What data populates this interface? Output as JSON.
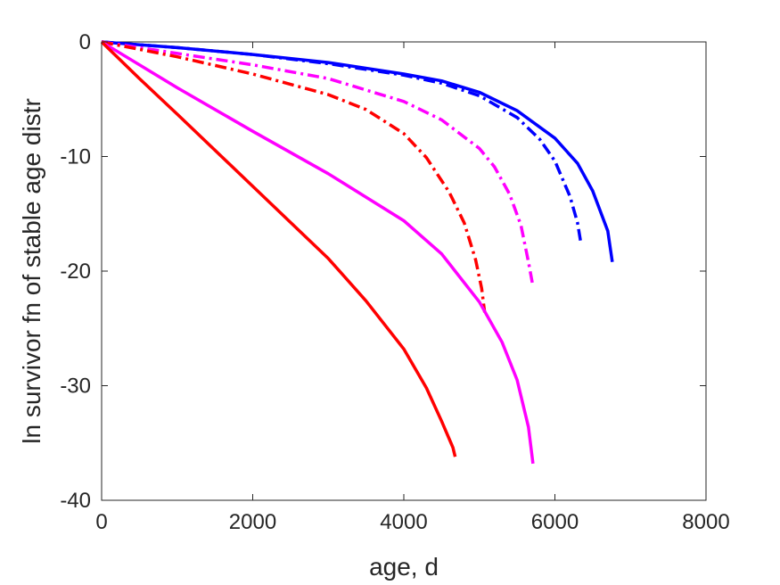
{
  "chart_data": {
    "type": "line",
    "title": "",
    "xlabel": "age, d",
    "ylabel": "ln survivor fn of stable age distr",
    "xlim": [
      0,
      8000
    ],
    "ylim": [
      -40,
      0
    ],
    "xticks": [
      0,
      2000,
      4000,
      6000,
      8000
    ],
    "yticks": [
      0,
      -10,
      -20,
      -30,
      -40
    ],
    "xtick_labels": [
      "0",
      "2000",
      "4000",
      "6000",
      "8000"
    ],
    "ytick_labels": [
      "0",
      "-10",
      "-20",
      "-30",
      "-40"
    ],
    "grid": false,
    "legend": false,
    "series": [
      {
        "color": "#0000ff",
        "style": "solid",
        "x": [
          0,
          1000,
          2000,
          3000,
          4000,
          4500,
          5000,
          5500,
          6000,
          6300,
          6500,
          6700,
          6760
        ],
        "y": [
          0,
          -0.5,
          -1.1,
          -1.8,
          -2.8,
          -3.4,
          -4.4,
          -6.0,
          -8.4,
          -10.6,
          -13.0,
          -16.5,
          -19.2
        ]
      },
      {
        "color": "#0000ff",
        "style": "dashdot",
        "x": [
          0,
          1000,
          2000,
          3000,
          4000,
          4500,
          5000,
          5500,
          5800,
          6000,
          6200,
          6300,
          6340
        ],
        "y": [
          0,
          -0.5,
          -1.1,
          -1.9,
          -2.9,
          -3.6,
          -4.7,
          -6.6,
          -8.5,
          -10.4,
          -13.5,
          -15.8,
          -17.4
        ]
      },
      {
        "color": "#ff00ff",
        "style": "dashdot",
        "x": [
          0,
          1000,
          2000,
          3000,
          4000,
          4500,
          5000,
          5200,
          5400,
          5550,
          5650,
          5700
        ],
        "y": [
          0,
          -1.0,
          -2.0,
          -3.2,
          -5.2,
          -6.8,
          -9.3,
          -10.9,
          -13.3,
          -16.0,
          -19.2,
          -21.0
        ]
      },
      {
        "color": "#ff0000",
        "style": "dashdot",
        "x": [
          0,
          1000,
          2000,
          3000,
          3500,
          4000,
          4300,
          4600,
          4800,
          4950,
          5030,
          5070
        ],
        "y": [
          0,
          -1.3,
          -2.8,
          -4.6,
          -5.9,
          -8.0,
          -10.1,
          -13.1,
          -15.8,
          -19.0,
          -21.5,
          -23.6
        ]
      },
      {
        "color": "#ff00ff",
        "style": "solid",
        "x": [
          0,
          1000,
          2000,
          3000,
          4000,
          4500,
          5000,
          5300,
          5500,
          5650,
          5710
        ],
        "y": [
          0,
          -4.0,
          -7.8,
          -11.5,
          -15.6,
          -18.5,
          -22.7,
          -26.2,
          -29.5,
          -33.6,
          -36.8
        ]
      },
      {
        "color": "#ff0000",
        "style": "solid",
        "x": [
          0,
          500,
          1000,
          2000,
          3000,
          3500,
          4000,
          4300,
          4500,
          4650,
          4680
        ],
        "y": [
          0,
          -3.2,
          -6.3,
          -12.6,
          -18.9,
          -22.6,
          -26.8,
          -30.2,
          -33.1,
          -35.4,
          -36.2
        ]
      }
    ]
  }
}
